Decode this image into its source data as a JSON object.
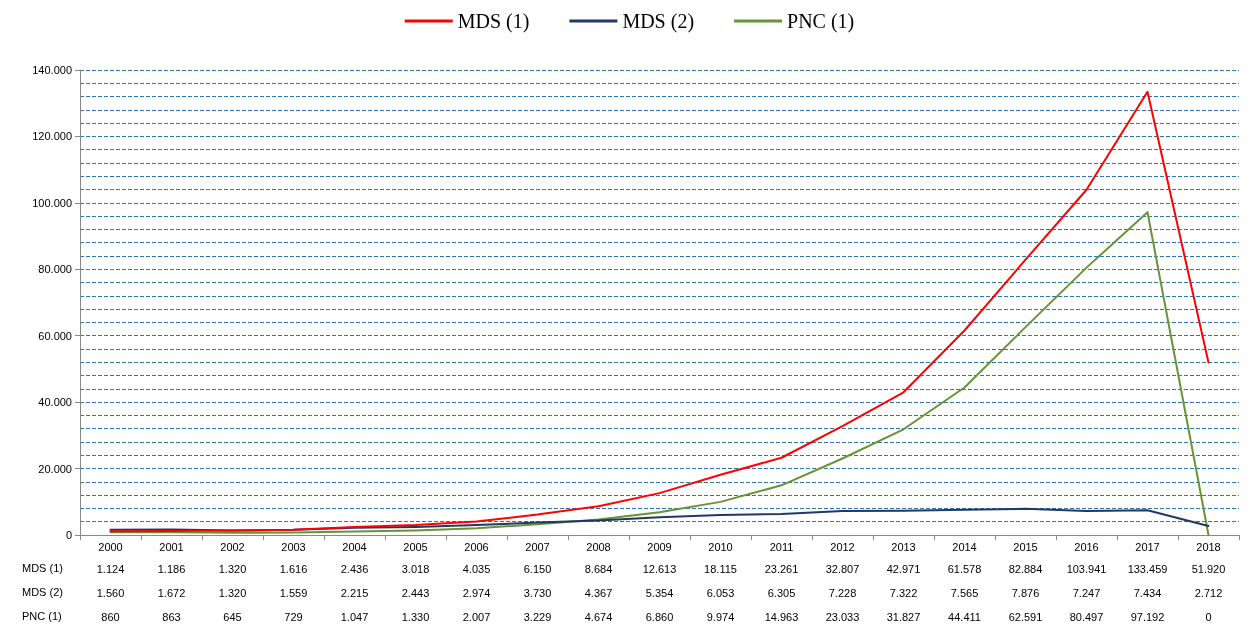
{
  "chart_data": {
    "type": "line",
    "categories": [
      "2000",
      "2001",
      "2002",
      "2003",
      "2004",
      "2005",
      "2006",
      "2007",
      "2008",
      "2009",
      "2010",
      "2011",
      "2012",
      "2013",
      "2014",
      "2015",
      "2016",
      "2017",
      "2018"
    ],
    "series": [
      {
        "name": "MDS (1)",
        "color": "#ff0000",
        "values": [
          1124,
          1186,
          1320,
          1616,
          2436,
          3018,
          4035,
          6150,
          8684,
          12613,
          18115,
          23261,
          32807,
          42971,
          61578,
          82884,
          103941,
          133459,
          51920
        ],
        "value_labels": [
          "1.124",
          "1.186",
          "1.320",
          "1.616",
          "2.436",
          "3.018",
          "4.035",
          "6.150",
          "8.684",
          "12.613",
          "18.115",
          "23.261",
          "32.807",
          "42.971",
          "61.578",
          "82.884",
          "103.941",
          "133.459",
          "51.920"
        ]
      },
      {
        "name": "MDS (2)",
        "color": "#1f3864",
        "values": [
          1560,
          1672,
          1320,
          1559,
          2215,
          2443,
          2974,
          3730,
          4367,
          5354,
          6053,
          6305,
          7228,
          7322,
          7565,
          7876,
          7247,
          7434,
          2712
        ],
        "value_labels": [
          "1.560",
          "1.672",
          "1.320",
          "1.559",
          "2.215",
          "2.443",
          "2.974",
          "3.730",
          "4.367",
          "5.354",
          "6.053",
          "6.305",
          "7.228",
          "7.322",
          "7.565",
          "7.876",
          "7.247",
          "7.434",
          "2.712"
        ]
      },
      {
        "name": "PNC (1)",
        "color": "#669436",
        "values": [
          860,
          863,
          645,
          729,
          1047,
          1330,
          2007,
          3229,
          4674,
          6860,
          9974,
          14963,
          23033,
          31827,
          44411,
          62591,
          80497,
          97192,
          0
        ],
        "value_labels": [
          "860",
          "863",
          "645",
          "729",
          "1.047",
          "1.330",
          "2.007",
          "3.229",
          "4.674",
          "6.860",
          "9.974",
          "14.963",
          "23.033",
          "31.827",
          "44.411",
          "62.591",
          "80.497",
          "97.192",
          "0"
        ]
      }
    ],
    "ylim": [
      0,
      140000
    ],
    "yticks": [
      {
        "value": 0,
        "label": "0"
      },
      {
        "value": 20000,
        "label": "20.000"
      },
      {
        "value": 40000,
        "label": "40.000"
      },
      {
        "value": 60000,
        "label": "60.000"
      },
      {
        "value": 80000,
        "label": "80.000"
      },
      {
        "value": 100000,
        "label": "100.000"
      },
      {
        "value": 120000,
        "label": "120.000"
      },
      {
        "value": 140000,
        "label": "140.000"
      }
    ],
    "grid": "y",
    "legend": "top",
    "marker": "none",
    "line_style": "solid"
  }
}
